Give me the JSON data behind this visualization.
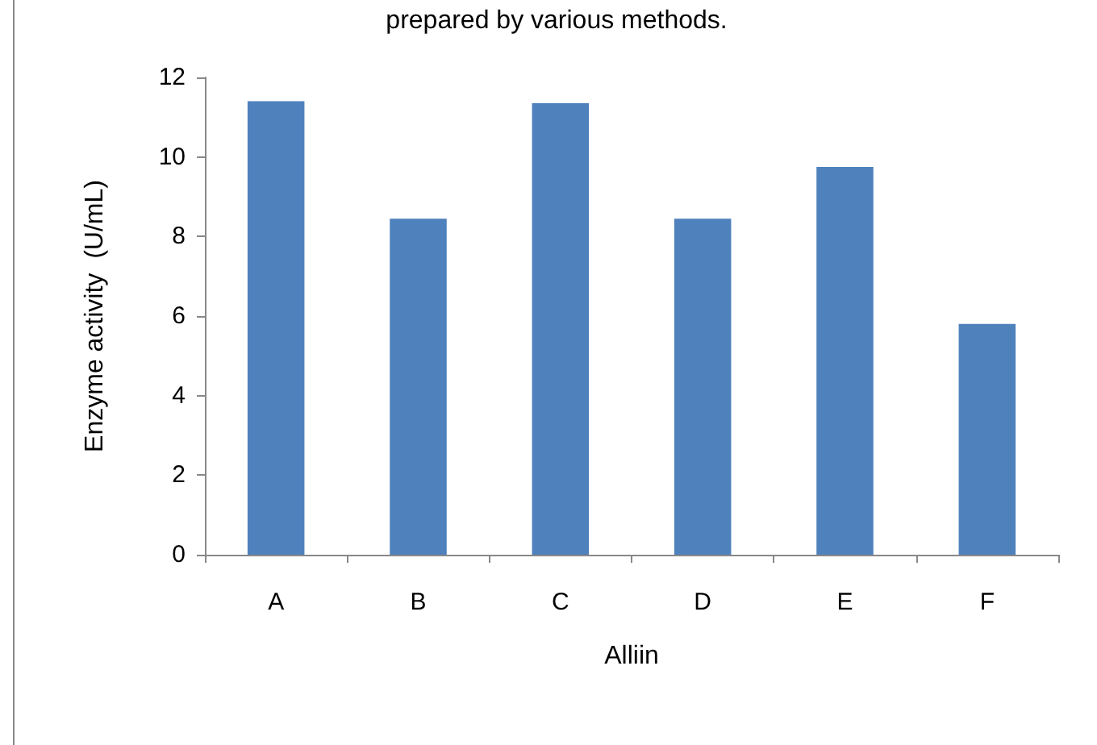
{
  "chart_data": {
    "type": "bar",
    "title": "prepared by various methods.",
    "xlabel": "Alliin",
    "ylabel": "Enzyme activity  (U/mL)",
    "categories": [
      "A",
      "B",
      "C",
      "D",
      "E",
      "F"
    ],
    "values": [
      11.4,
      8.45,
      11.35,
      8.45,
      9.75,
      5.8
    ],
    "color": "#4f81bd",
    "ylim": [
      0,
      12
    ],
    "yticks": [
      0,
      2,
      4,
      6,
      8,
      10,
      12
    ],
    "grid": false
  }
}
